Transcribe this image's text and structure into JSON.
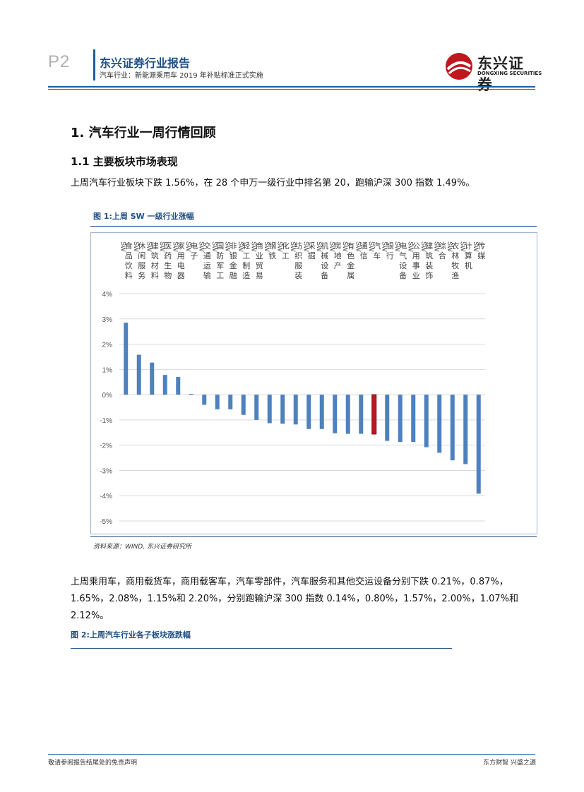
{
  "header": {
    "page_num": "P2",
    "title": "东兴证券行业报告",
    "subtitle": "汽车行业：新能源乘用车 2019 年补贴标准正式实施",
    "logo_cn": "东兴证券",
    "logo_en": "DONGXING SECURITIES"
  },
  "section": {
    "h1": "1. 汽车行业一周行情回顾",
    "h2": "1.1 主要板块市场表现",
    "para1": "上周汽车行业板块下跌 1.56%，在 28 个申万一级行业中排名第 20，跑输沪深 300 指数 1.49%。",
    "fig1_title": "图 1:上周 SW 一级行业涨幅",
    "source": "资料来源：WIND, 东兴证券研究所",
    "para2_line1": "上周乘用车，商用载货车，商用载客车，汽车零部件，汽车服务和其他交运设备分别下跌 0.21%，0.87%，",
    "para2_line2": "1.65%，2.08%，1.15%和 2.20%，分别跑输沪深 300 指数 0.14%，0.80%，1.57%，2.00%，1.07%和",
    "para2_line3": "2.12%。",
    "fig2_title": "图 2:上周汽车行业各子板块涨跌幅"
  },
  "footer": {
    "left": "敬请参阅报告结尾处的免责声明",
    "right": "东方财智  兴盛之源"
  },
  "colors": {
    "bar": "#4e81bd",
    "highlight": "#c0171f",
    "accent": "#1f5f98"
  },
  "chart_data": {
    "type": "bar",
    "title": "图 1:上周 SW 一级行业涨幅",
    "categories": [
      "SW食品饮料",
      "SW休闲服务",
      "SW建筑材料",
      "SW医药生物",
      "SW家用电器",
      "SW电子",
      "SW交通运输",
      "SW国防军工",
      "SW非银金融",
      "SW轻工制造",
      "SW商业贸易",
      "SW钢铁",
      "SW化工",
      "SW纺织服装",
      "SW采掘",
      "SW机械设备",
      "SW房地产",
      "SW有色金属",
      "SW通信",
      "SW汽车",
      "SW银行",
      "SW电气设备",
      "SW公用事业",
      "SW建筑装饰",
      "SW综合",
      "SW农林牧渔",
      "SW计算机",
      "SW传媒"
    ],
    "values": [
      2.85,
      1.58,
      1.27,
      0.78,
      0.7,
      0.03,
      -0.4,
      -0.58,
      -0.58,
      -0.8,
      -1.0,
      -1.13,
      -1.15,
      -1.18,
      -1.36,
      -1.36,
      -1.53,
      -1.55,
      -1.55,
      -1.56,
      -1.83,
      -1.87,
      -1.87,
      -2.08,
      -2.3,
      -2.6,
      -2.75,
      -3.92
    ],
    "highlight_category": "SW汽车",
    "y_ticks": [
      "4%",
      "3%",
      "2%",
      "1%",
      "0%",
      "-1%",
      "-2%",
      "-3%",
      "-4%",
      "-5%"
    ],
    "ylim": [
      -5,
      4
    ],
    "xlabel": "",
    "ylabel": "",
    "grid": true
  }
}
